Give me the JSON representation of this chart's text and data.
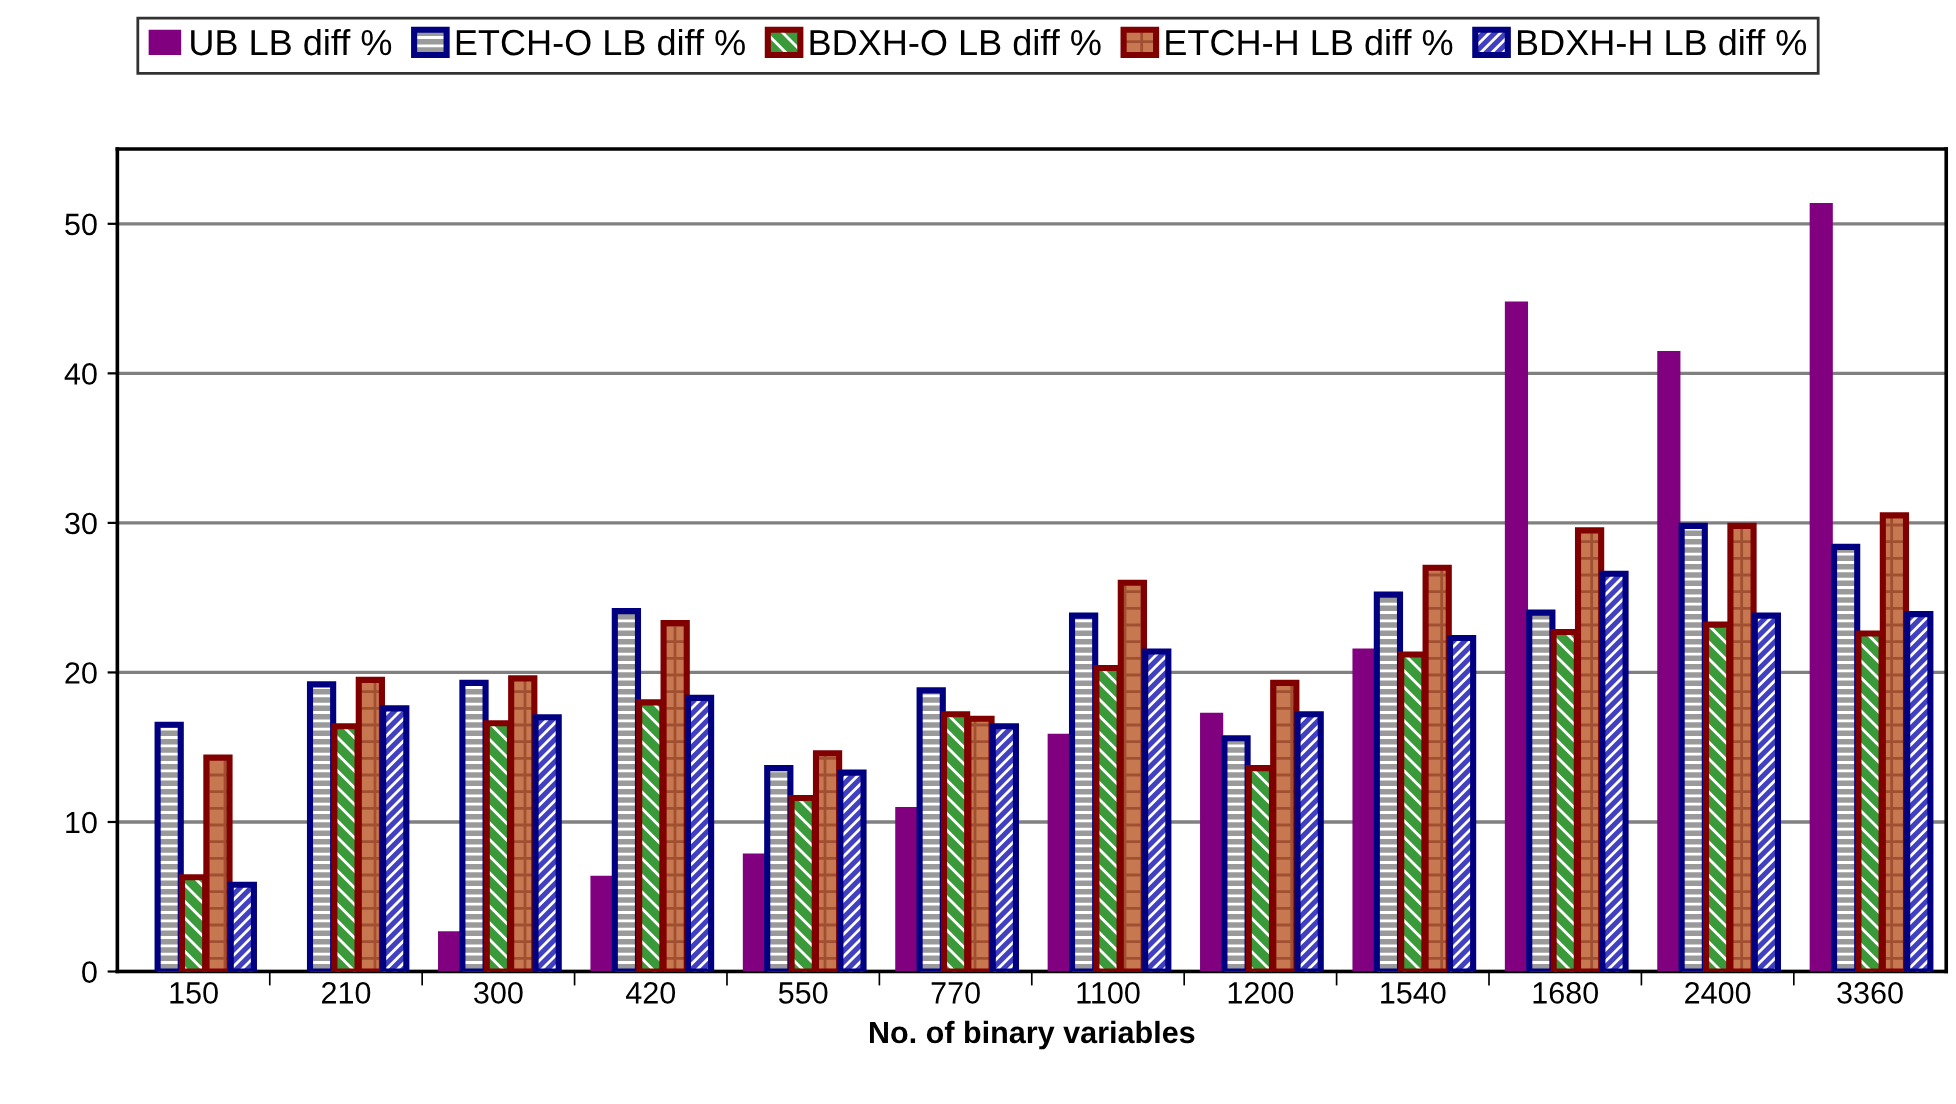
{
  "chart_data": {
    "type": "bar",
    "xlabel": "No. of binary variables",
    "categories": [
      "150",
      "210",
      "300",
      "420",
      "550",
      "770",
      "1100",
      "1200",
      "1540",
      "1680",
      "2400",
      "3360"
    ],
    "series": [
      {
        "name": "UB LB diff %",
        "color": "#800080",
        "values": [
          0,
          0,
          2.7,
          6.4,
          7.9,
          11,
          15.9,
          17.3,
          21.6,
          44.8,
          41.5,
          51.4
        ]
      },
      {
        "name": "ETCH-O LB diff %",
        "color": "#000080",
        "values": [
          16.5,
          19.2,
          19.3,
          24.1,
          13.6,
          18.8,
          23.8,
          15.6,
          25.2,
          24,
          29.8,
          28.4
        ]
      },
      {
        "name": "BDXH-O LB diff %",
        "color": "#800000",
        "values": [
          6.3,
          16.4,
          16.6,
          18,
          11.6,
          17.2,
          20.3,
          13.6,
          21.2,
          22.7,
          23.2,
          22.6
        ]
      },
      {
        "name": "ETCH-H LB diff %",
        "color": "#800000",
        "values": [
          14.3,
          19.5,
          19.6,
          23.3,
          14.6,
          16.9,
          26,
          19.3,
          27,
          29.5,
          29.8,
          30.5
        ]
      },
      {
        "name": "BDXH-H LB diff %",
        "color": "#000080",
        "values": [
          5.8,
          17.6,
          17,
          18.3,
          13.3,
          16.4,
          21.4,
          17.2,
          22.3,
          26.6,
          23.8,
          23.9
        ]
      }
    ],
    "ylim": [
      0,
      55
    ],
    "yticks": [
      0,
      10,
      20,
      30,
      40,
      50
    ],
    "grid": "y",
    "legend": "top"
  }
}
